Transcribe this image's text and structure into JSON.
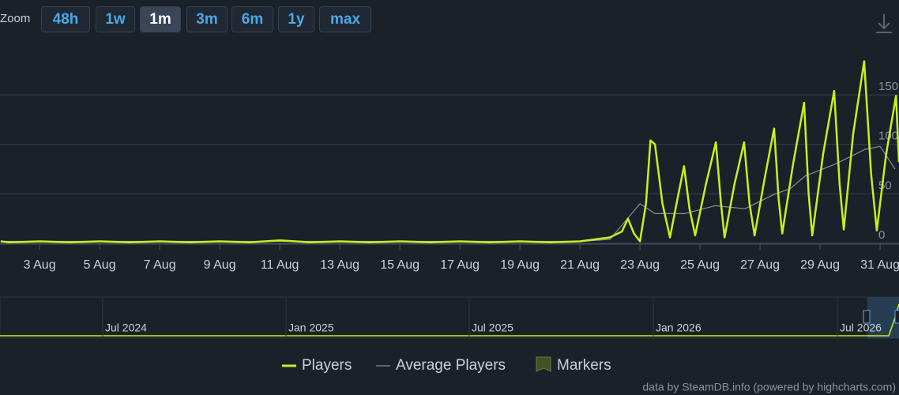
{
  "zoom": {
    "label": "Zoom",
    "buttons": [
      "48h",
      "1w",
      "1m",
      "3m",
      "6m",
      "1y",
      "max"
    ],
    "selected": "1m"
  },
  "chart_data": {
    "type": "line",
    "xlim": [
      1.68,
      31.63
    ],
    "xticks": [
      {
        "value": 3,
        "label": "3 Aug"
      },
      {
        "value": 5,
        "label": "5 Aug"
      },
      {
        "value": 7,
        "label": "7 Aug"
      },
      {
        "value": 9,
        "label": "9 Aug"
      },
      {
        "value": 11,
        "label": "11 Aug"
      },
      {
        "value": 13,
        "label": "13 Aug"
      },
      {
        "value": 15,
        "label": "15 Aug"
      },
      {
        "value": 17,
        "label": "17 Aug"
      },
      {
        "value": 19,
        "label": "19 Aug"
      },
      {
        "value": 21,
        "label": "21 Aug"
      },
      {
        "value": 23,
        "label": "23 Aug"
      },
      {
        "value": 25,
        "label": "25 Aug"
      },
      {
        "value": 27,
        "label": "27 Aug"
      },
      {
        "value": 29,
        "label": "29 Aug"
      },
      {
        "value": 31,
        "label": "31 Aug"
      }
    ],
    "ylim": [
      0,
      198
    ],
    "yticks": [
      0,
      50,
      100,
      150
    ],
    "grid": true,
    "series": [
      {
        "name": "Players",
        "color": "#c3f21f",
        "x": [
          1.7,
          2,
          3,
          4,
          5,
          6,
          7,
          8,
          9,
          10,
          11,
          12,
          13,
          14,
          15,
          16,
          17,
          18,
          19,
          20,
          21,
          21.5,
          22,
          22.4,
          22.6,
          22.8,
          23,
          23.2,
          23.35,
          23.5,
          23.75,
          24,
          24.25,
          24.47,
          24.65,
          24.84,
          25.2,
          25.53,
          25.7,
          25.82,
          26.15,
          26.47,
          26.65,
          26.82,
          27.15,
          27.47,
          27.62,
          27.74,
          28.1,
          28.47,
          28.62,
          28.74,
          29.1,
          29.47,
          29.65,
          29.79,
          30.1,
          30.47,
          30.7,
          30.89,
          31.2,
          31.53,
          31.63
        ],
        "values": [
          2,
          1,
          2,
          1,
          2,
          1,
          2,
          1,
          2,
          1,
          3,
          1,
          2,
          1,
          2,
          1,
          2,
          1,
          2,
          1,
          2,
          4,
          6,
          12,
          25,
          10,
          2,
          40,
          104,
          100,
          40,
          6,
          45,
          78,
          35,
          8,
          60,
          102,
          40,
          6,
          60,
          102,
          40,
          8,
          65,
          116,
          45,
          10,
          80,
          142,
          50,
          8,
          90,
          154,
          60,
          14,
          110,
          184,
          70,
          13,
          90,
          149,
          82
        ]
      },
      {
        "name": "Average Players",
        "color": "#8a8f96",
        "x": [
          1.7,
          21,
          22,
          23,
          23.5,
          24.5,
          25.5,
          26.5,
          27.5,
          28,
          28.5,
          29.5,
          30.5,
          31,
          31.5
        ],
        "values": [
          2,
          2,
          4,
          40,
          30,
          30,
          38,
          35,
          50,
          55,
          68,
          80,
          95,
          98,
          75
        ]
      }
    ],
    "markers": {
      "name": "Markers",
      "color": "#3e5224"
    },
    "navigator_labels": [
      "Jul 2024",
      "Jan 2025",
      "Jul 2025",
      "Jan 2026",
      "Jul 2026"
    ],
    "credits": "data by SteamDB.info (powered by highcharts.com)"
  }
}
